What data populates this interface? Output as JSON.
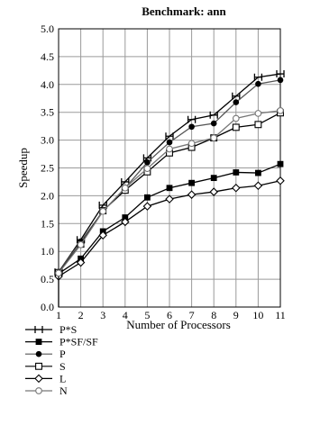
{
  "chart_data": {
    "type": "line",
    "title": "Benchmark: ann",
    "xlabel": "Number of Processors",
    "ylabel": "Speedup",
    "x": [
      1,
      2,
      3,
      4,
      5,
      6,
      7,
      8,
      9,
      10,
      11
    ],
    "xticks": [
      "1",
      "2",
      "3",
      "4",
      "5",
      "6",
      "7",
      "8",
      "9",
      "10",
      "11"
    ],
    "xlim": [
      1,
      11
    ],
    "ylim": [
      0,
      5
    ],
    "yticks": [
      "0.0",
      "0.5",
      "1.0",
      "1.5",
      "2.0",
      "2.5",
      "3.0",
      "3.5",
      "4.0",
      "4.5",
      "5.0"
    ],
    "grid": true,
    "legend_position": "bottom-left",
    "series": [
      {
        "name": "P*S",
        "marker": "plus-bar",
        "color": "#000000",
        "values": [
          0.63,
          1.21,
          1.83,
          2.25,
          2.68,
          3.07,
          3.37,
          3.45,
          3.79,
          4.13,
          4.19
        ]
      },
      {
        "name": "P*SF/SF",
        "marker": "filled-square",
        "color": "#000000",
        "values": [
          0.6,
          0.87,
          1.36,
          1.61,
          1.97,
          2.14,
          2.23,
          2.32,
          2.42,
          2.41,
          2.57
        ]
      },
      {
        "name": "P",
        "marker": "filled-circle",
        "color": "#555555",
        "values": [
          0.63,
          1.18,
          1.72,
          2.14,
          2.6,
          2.96,
          3.24,
          3.3,
          3.68,
          4.01,
          4.08
        ]
      },
      {
        "name": "S",
        "marker": "open-square",
        "color": "#000000",
        "values": [
          0.62,
          1.13,
          1.73,
          2.1,
          2.43,
          2.77,
          2.87,
          3.04,
          3.23,
          3.28,
          3.49
        ]
      },
      {
        "name": "L",
        "marker": "open-diamond",
        "color": "#000000",
        "values": [
          0.55,
          0.8,
          1.29,
          1.53,
          1.81,
          1.94,
          2.02,
          2.07,
          2.14,
          2.18,
          2.27
        ]
      },
      {
        "name": "N",
        "marker": "open-circle",
        "color": "#777777",
        "values": [
          0.61,
          1.12,
          1.72,
          2.14,
          2.49,
          2.84,
          2.94,
          3.04,
          3.39,
          3.48,
          3.53
        ]
      }
    ]
  }
}
